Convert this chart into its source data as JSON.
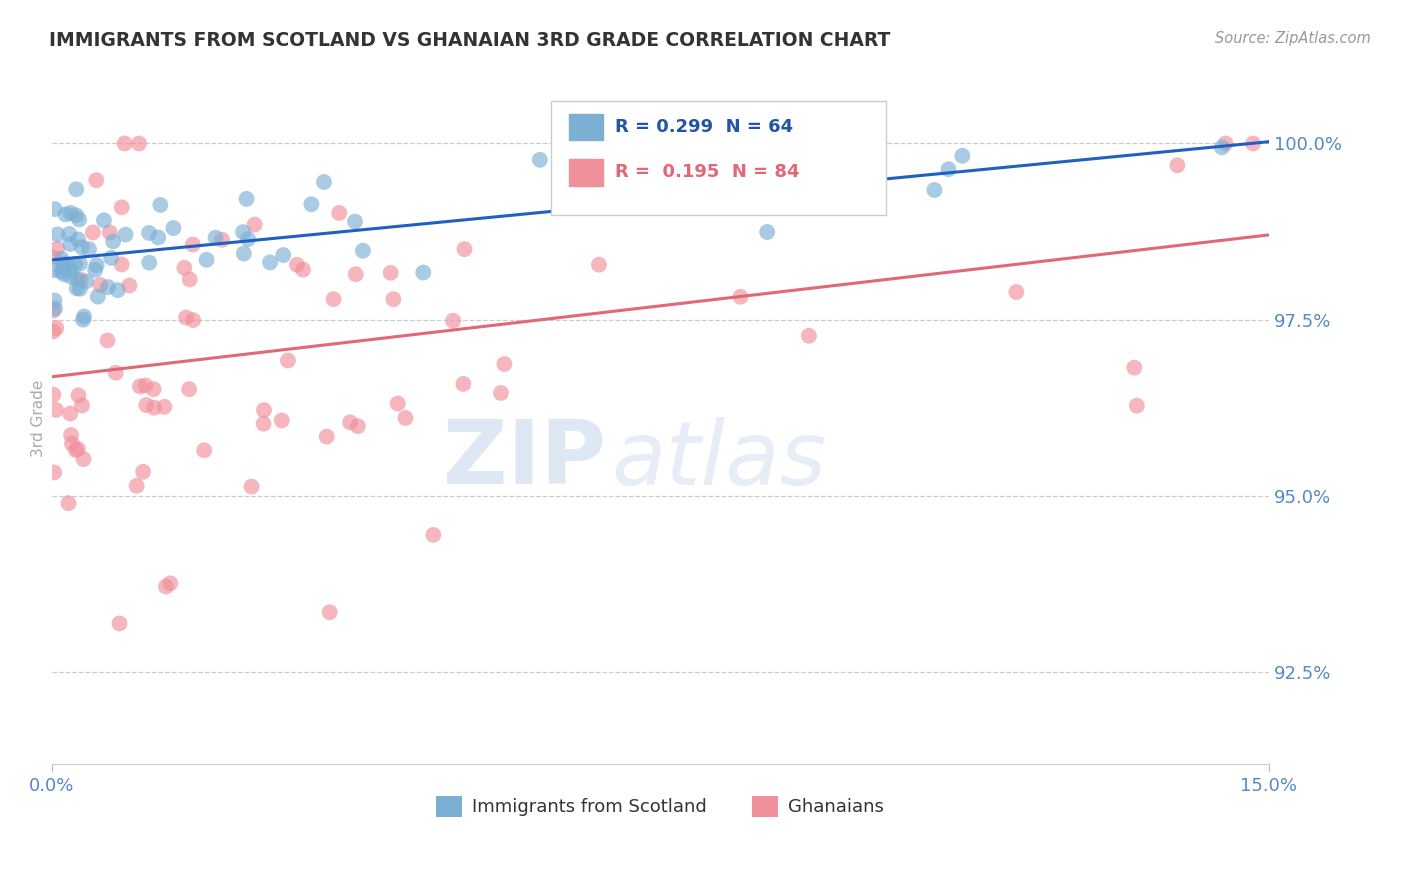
{
  "title": "IMMIGRANTS FROM SCOTLAND VS GHANAIAN 3RD GRADE CORRELATION CHART",
  "source_text": "Source: ZipAtlas.com",
  "ylabel": "3rd Grade",
  "y_ticks": [
    92.5,
    95.0,
    97.5,
    100.0
  ],
  "y_tick_labels": [
    "92.5%",
    "95.0%",
    "97.5%",
    "100.0%"
  ],
  "x_min": 0.0,
  "x_max": 15.0,
  "y_min": 91.2,
  "y_max": 101.0,
  "r_scotland": 0.299,
  "n_scotland": 64,
  "r_ghana": 0.195,
  "n_ghana": 84,
  "color_scotland": "#7bafd4",
  "color_ghana": "#f0909a",
  "trendline_scotland": "#2060c0",
  "trendline_ghana": "#e06878",
  "legend_label_scotland": "Immigrants from Scotland",
  "legend_label_ghana": "Ghanaians",
  "watermark_zip": "ZIP",
  "watermark_atlas": "atlas",
  "background_color": "#ffffff",
  "grid_color": "#cccccc",
  "title_color": "#333333",
  "axis_label_color": "#5588cc"
}
